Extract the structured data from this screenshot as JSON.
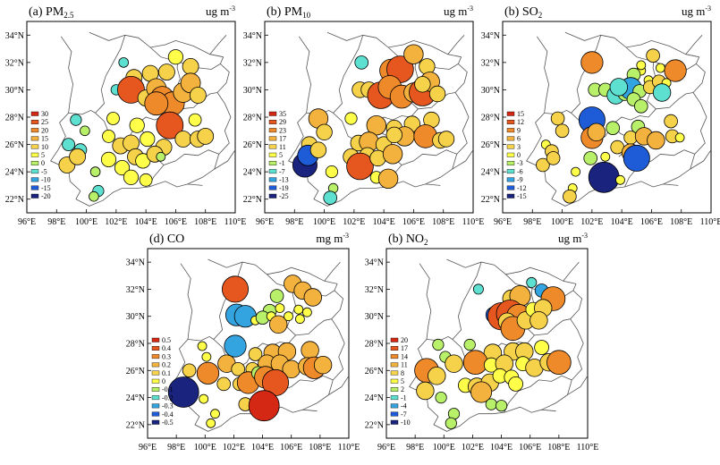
{
  "colors": {
    "frame": "#000000",
    "boundary": "#555555",
    "outline": "#000000"
  },
  "ramp": [
    "#1a237e",
    "#1e5bd6",
    "#34a4e0",
    "#5ee0d0",
    "#b8f06a",
    "#ffff4a",
    "#f6d24a",
    "#f3b23e",
    "#ef8a2a",
    "#e6561f",
    "#d42815"
  ],
  "axes": {
    "lon_ticks": [
      "96°E",
      "98°E",
      "100°E",
      "102°E",
      "104°E",
      "106°E",
      "108°E",
      "110°E"
    ],
    "lat_ticks": [
      "22°N",
      "24°N",
      "26°N",
      "28°N",
      "30°N",
      "32°N",
      "34°N"
    ],
    "lon_range": [
      96,
      110
    ],
    "lat_range": [
      21,
      35
    ]
  },
  "chart_data": [
    {
      "type": "scatter",
      "title": "(a) PM2.5",
      "title_main": "(a) PM",
      "title_sub": "2.5",
      "unit": "ug m",
      "unit_sup": "-3",
      "legend": [
        "30",
        "25",
        "20",
        "15",
        "10",
        "5",
        "0",
        "-5",
        "-10",
        "-15",
        "-20"
      ],
      "points": [
        [
          102.5,
          32.0,
          -1
        ],
        [
          103.2,
          30.9,
          10
        ],
        [
          104.3,
          31.2,
          10
        ],
        [
          105.4,
          31.3,
          10
        ],
        [
          106.0,
          32.4,
          8
        ],
        [
          107.0,
          31.7,
          10
        ],
        [
          102.0,
          30.0,
          -2
        ],
        [
          103.0,
          30.0,
          25
        ],
        [
          104.0,
          29.4,
          10
        ],
        [
          104.7,
          30.1,
          15
        ],
        [
          105.1,
          29.4,
          20
        ],
        [
          105.8,
          29.0,
          20
        ],
        [
          106.5,
          29.8,
          15
        ],
        [
          107.0,
          30.5,
          15
        ],
        [
          107.5,
          29.6,
          10
        ],
        [
          99.3,
          27.8,
          -3
        ],
        [
          99.9,
          27.0,
          1
        ],
        [
          101.8,
          27.9,
          5
        ],
        [
          103.4,
          27.4,
          8
        ],
        [
          105.6,
          27.4,
          25
        ],
        [
          107.3,
          27.8,
          5
        ],
        [
          101.5,
          26.6,
          5
        ],
        [
          102.3,
          25.9,
          10
        ],
        [
          103.0,
          26.1,
          10
        ],
        [
          104.1,
          26.4,
          8
        ],
        [
          105.2,
          25.8,
          10
        ],
        [
          106.5,
          26.4,
          10
        ],
        [
          107.5,
          26.4,
          10
        ],
        [
          108.0,
          26.6,
          10
        ],
        [
          98.8,
          26.0,
          -5
        ],
        [
          99.6,
          25.6,
          -5
        ],
        [
          98.7,
          24.5,
          10
        ],
        [
          99.4,
          25.1,
          10
        ],
        [
          100.6,
          24.0,
          1
        ],
        [
          101.5,
          24.9,
          8
        ],
        [
          102.4,
          24.3,
          8
        ],
        [
          103.3,
          25.1,
          10
        ],
        [
          103.8,
          24.8,
          8
        ],
        [
          104.6,
          25.3,
          10
        ],
        [
          103.0,
          23.6,
          8
        ],
        [
          104.0,
          23.4,
          5
        ],
        [
          105.0,
          25.1,
          0
        ],
        [
          100.8,
          22.6,
          -3
        ],
        [
          100.5,
          22.2,
          1
        ],
        [
          104.7,
          29.0,
          20
        ]
      ]
    },
    {
      "type": "scatter",
      "title": "(b) PM10",
      "title_main": "(b) PM",
      "title_sub": "10",
      "unit": "ug m",
      "unit_sup": "-3",
      "legend": [
        "35",
        "29",
        "23",
        "17",
        "11",
        "5",
        "-1",
        "-7",
        "-13",
        "-19",
        "-25"
      ],
      "points": [
        [
          102.5,
          32.0,
          -7
        ],
        [
          104.5,
          31.4,
          23
        ],
        [
          105.1,
          31.5,
          29
        ],
        [
          106.0,
          32.6,
          17
        ],
        [
          106.9,
          31.7,
          11
        ],
        [
          102.4,
          30.0,
          11
        ],
        [
          103.0,
          30.0,
          11
        ],
        [
          103.8,
          29.6,
          29
        ],
        [
          104.4,
          30.2,
          23
        ],
        [
          105.2,
          29.5,
          23
        ],
        [
          106.0,
          29.8,
          17
        ],
        [
          106.6,
          29.8,
          29
        ],
        [
          107.1,
          30.6,
          17
        ],
        [
          106.6,
          30.4,
          11
        ],
        [
          107.6,
          29.7,
          11
        ],
        [
          99.6,
          27.9,
          17
        ],
        [
          100.0,
          26.9,
          11
        ],
        [
          101.8,
          27.9,
          5
        ],
        [
          103.5,
          27.4,
          17
        ],
        [
          104.7,
          27.2,
          11
        ],
        [
          105.9,
          27.5,
          11
        ],
        [
          107.2,
          27.8,
          11
        ],
        [
          99.0,
          26.0,
          11
        ],
        [
          102.3,
          26.1,
          11
        ],
        [
          103.0,
          26.2,
          17
        ],
        [
          104.0,
          26.0,
          11
        ],
        [
          105.4,
          26.6,
          17
        ],
        [
          106.8,
          26.6,
          23
        ],
        [
          107.8,
          26.3,
          11
        ],
        [
          108.2,
          26.4,
          11
        ],
        [
          98.7,
          24.5,
          -25
        ],
        [
          98.9,
          25.2,
          -19
        ],
        [
          99.6,
          25.6,
          11
        ],
        [
          100.5,
          24.0,
          5
        ],
        [
          101.8,
          25.1,
          11
        ],
        [
          102.9,
          25.2,
          11
        ],
        [
          102.4,
          24.4,
          29
        ],
        [
          103.6,
          25.0,
          11
        ],
        [
          104.6,
          25.3,
          17
        ],
        [
          103.5,
          23.6,
          5
        ],
        [
          104.3,
          23.5,
          17
        ],
        [
          100.6,
          22.8,
          -1
        ],
        [
          100.4,
          22.1,
          -7
        ],
        [
          104.7,
          26.7,
          11
        ]
      ]
    },
    {
      "type": "scatter",
      "title": "(b) SO2",
      "title_main": "(b) SO",
      "title_sub": "2",
      "unit": "ug m",
      "unit_sup": "-3",
      "legend": [
        "15",
        "12",
        "9",
        "6",
        "3",
        "0",
        "-3",
        "-6",
        "-9",
        "-12",
        "-15"
      ],
      "points": [
        [
          102.0,
          32.0,
          9
        ],
        [
          105.3,
          31.4,
          0
        ],
        [
          106.1,
          32.5,
          3
        ],
        [
          106.6,
          31.6,
          0
        ],
        [
          107.6,
          31.4,
          9
        ],
        [
          104.8,
          31.1,
          -3
        ],
        [
          105.8,
          30.7,
          0
        ],
        [
          102.2,
          30.0,
          -3
        ],
        [
          102.9,
          30.0,
          -3
        ],
        [
          103.6,
          29.6,
          -6
        ],
        [
          104.2,
          29.7,
          -3
        ],
        [
          104.6,
          30.1,
          -9
        ],
        [
          105.2,
          29.9,
          -3
        ],
        [
          104.8,
          29.3,
          -3
        ],
        [
          105.3,
          28.8,
          -3
        ],
        [
          105.9,
          30.2,
          3
        ],
        [
          106.5,
          30.6,
          3
        ],
        [
          107.0,
          30.5,
          0
        ],
        [
          106.7,
          29.8,
          -6
        ],
        [
          103.8,
          30.2,
          -6
        ],
        [
          102.0,
          27.8,
          -12
        ],
        [
          99.7,
          27.9,
          3
        ],
        [
          100.0,
          27.0,
          3
        ],
        [
          103.4,
          27.2,
          -3
        ],
        [
          105.1,
          27.3,
          -3
        ],
        [
          107.3,
          27.7,
          3
        ],
        [
          102.0,
          26.5,
          9
        ],
        [
          102.3,
          26.9,
          6
        ],
        [
          104.6,
          26.5,
          3
        ],
        [
          105.5,
          26.6,
          6
        ],
        [
          106.3,
          26.3,
          6
        ],
        [
          107.4,
          26.6,
          3
        ],
        [
          107.9,
          26.5,
          0
        ],
        [
          98.9,
          26.0,
          0
        ],
        [
          99.3,
          25.5,
          3
        ],
        [
          98.7,
          24.5,
          3
        ],
        [
          99.4,
          25.0,
          3
        ],
        [
          100.9,
          24.0,
          0
        ],
        [
          101.9,
          25.0,
          -3
        ],
        [
          102.9,
          25.1,
          0
        ],
        [
          103.7,
          25.8,
          3
        ],
        [
          104.6,
          25.4,
          6
        ],
        [
          105.0,
          25.0,
          -12
        ],
        [
          102.8,
          23.6,
          -15
        ],
        [
          103.9,
          23.4,
          0
        ],
        [
          100.7,
          22.8,
          0
        ],
        [
          100.5,
          22.2,
          3
        ],
        [
          105.3,
          31.8,
          0
        ]
      ]
    },
    {
      "type": "scatter",
      "title": "(d) CO",
      "title_main": "(d) CO",
      "title_sub": "",
      "unit": "mg m",
      "unit_sup": "-3",
      "legend": [
        "0.5",
        "0.4",
        "0.3",
        "0.2",
        "0.1",
        "0",
        "-0.1",
        "-0.2",
        "-0.3",
        "-0.4",
        "-0.5"
      ],
      "points": [
        [
          102.1,
          32.0,
          0.4
        ],
        [
          105.0,
          31.5,
          -0.1
        ],
        [
          106.1,
          32.4,
          0.2
        ],
        [
          106.8,
          31.9,
          0.2
        ],
        [
          107.5,
          31.4,
          0.2
        ],
        [
          104.5,
          30.4,
          -0.1
        ],
        [
          105.2,
          30.6,
          0
        ],
        [
          102.2,
          30.1,
          -0.3
        ],
        [
          102.8,
          30.0,
          -0.3
        ],
        [
          103.5,
          29.7,
          0
        ],
        [
          104.0,
          29.9,
          -0.1
        ],
        [
          104.6,
          30.0,
          0
        ],
        [
          105.1,
          29.4,
          0.2
        ],
        [
          105.8,
          30.0,
          0
        ],
        [
          106.5,
          30.5,
          0
        ],
        [
          107.1,
          30.3,
          0
        ],
        [
          106.6,
          29.8,
          0
        ],
        [
          102.1,
          27.8,
          -0.3
        ],
        [
          99.8,
          27.8,
          0
        ],
        [
          100.1,
          27.0,
          0
        ],
        [
          103.5,
          27.2,
          0.1
        ],
        [
          104.7,
          27.3,
          0.2
        ],
        [
          105.7,
          27.4,
          0.2
        ],
        [
          107.3,
          27.5,
          0.2
        ],
        [
          98.9,
          26.0,
          0.1
        ],
        [
          100.2,
          25.8,
          0.3
        ],
        [
          101.5,
          26.5,
          0.2
        ],
        [
          102.3,
          26.1,
          0.1
        ],
        [
          103.3,
          26.1,
          0.1
        ],
        [
          104.3,
          26.5,
          0.2
        ],
        [
          105.2,
          26.5,
          0.2
        ],
        [
          106.0,
          26.1,
          0.2
        ],
        [
          107.1,
          26.3,
          0.2
        ],
        [
          107.6,
          26.2,
          0.3
        ],
        [
          108.2,
          26.4,
          0.2
        ],
        [
          98.5,
          24.4,
          -0.5
        ],
        [
          99.9,
          23.9,
          0
        ],
        [
          101.3,
          25.0,
          0.1
        ],
        [
          102.4,
          25.0,
          0.1
        ],
        [
          103.0,
          25.1,
          0.3
        ],
        [
          103.7,
          25.8,
          -0.1
        ],
        [
          104.2,
          25.5,
          0.3
        ],
        [
          104.9,
          25.1,
          0.4
        ],
        [
          102.8,
          23.5,
          0.1
        ],
        [
          104.1,
          23.4,
          0.5
        ],
        [
          100.7,
          22.8,
          0
        ],
        [
          100.4,
          22.1,
          0
        ]
      ]
    },
    {
      "type": "scatter",
      "title": "(b) NO2",
      "title_main": "(b) NO",
      "title_sub": "2",
      "unit": "ug m",
      "unit_sup": "-3",
      "legend": [
        "20",
        "17",
        "14",
        "11",
        "8",
        "5",
        "2",
        "-1",
        "-4",
        "-7",
        "-10"
      ],
      "points": [
        [
          102.4,
          32.0,
          -1
        ],
        [
          104.7,
          31.3,
          8
        ],
        [
          105.3,
          31.5,
          11
        ],
        [
          106.1,
          32.5,
          -1
        ],
        [
          106.8,
          31.9,
          -4
        ],
        [
          107.6,
          31.3,
          14
        ],
        [
          103.5,
          30.1,
          -7
        ],
        [
          104.0,
          30.0,
          17
        ],
        [
          104.6,
          30.2,
          17
        ],
        [
          105.2,
          30.0,
          14
        ],
        [
          104.4,
          29.6,
          8
        ],
        [
          104.8,
          29.1,
          14
        ],
        [
          105.7,
          29.7,
          8
        ],
        [
          106.2,
          30.5,
          5
        ],
        [
          106.9,
          30.6,
          8
        ],
        [
          106.6,
          29.7,
          8
        ],
        [
          99.6,
          27.9,
          2
        ],
        [
          100.1,
          27.0,
          2
        ],
        [
          101.8,
          27.9,
          2
        ],
        [
          103.4,
          27.3,
          8
        ],
        [
          104.8,
          27.4,
          8
        ],
        [
          105.6,
          27.4,
          8
        ],
        [
          106.8,
          27.7,
          5
        ],
        [
          98.8,
          26.0,
          14
        ],
        [
          99.5,
          25.6,
          8
        ],
        [
          100.7,
          26.5,
          8
        ],
        [
          102.2,
          26.6,
          14
        ],
        [
          103.3,
          26.4,
          5
        ],
        [
          104.2,
          26.5,
          8
        ],
        [
          105.5,
          26.5,
          5
        ],
        [
          106.3,
          26.2,
          8
        ],
        [
          107.3,
          26.6,
          8
        ],
        [
          108.0,
          26.6,
          14
        ],
        [
          98.7,
          24.5,
          8
        ],
        [
          99.8,
          24.0,
          2
        ],
        [
          101.5,
          24.9,
          5
        ],
        [
          102.3,
          24.8,
          8
        ],
        [
          103.2,
          25.1,
          8
        ],
        [
          103.9,
          25.6,
          5
        ],
        [
          104.7,
          25.5,
          5
        ],
        [
          102.6,
          24.4,
          11
        ],
        [
          103.3,
          23.5,
          2
        ],
        [
          104.0,
          23.4,
          2
        ],
        [
          105.0,
          25.0,
          5
        ],
        [
          100.7,
          22.8,
          2
        ],
        [
          100.5,
          22.1,
          2
        ]
      ]
    }
  ]
}
